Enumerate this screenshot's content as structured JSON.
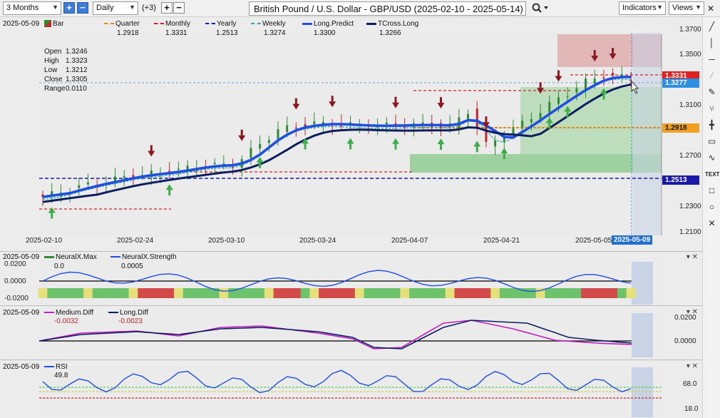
{
  "toolbar": {
    "period": "3 Months",
    "interval": "Daily",
    "extra_count": "(+3)",
    "title": "British Pound / U.S. Dollar - GBP/USD (2025-02-10 - 2025-05-14)",
    "indicators_label": "Indicators",
    "views_label": "Views"
  },
  "main": {
    "date": "2025-05-09",
    "legend": [
      {
        "label": "Bar",
        "color": "#2e8b2e"
      },
      {
        "label": "Quarter",
        "color": "#e08a1e"
      },
      {
        "label": "Monthly",
        "color": "#d42020"
      },
      {
        "label": "Yearly",
        "color": "#1a1aa8"
      },
      {
        "label": "Weekly",
        "color": "#3aa7a7"
      },
      {
        "label": "Long.Predict",
        "color": "#1f4fe0"
      },
      {
        "label": "TCross.Long",
        "color": "#0b1f5e"
      }
    ],
    "legend_values": [
      "1.2918",
      "1.3331",
      "1.2513",
      "1.3274",
      "1.3300",
      "1.3266"
    ],
    "ohlc": [
      {
        "k": "Open",
        "v": "1.3246"
      },
      {
        "k": "High",
        "v": "1.3323"
      },
      {
        "k": "Low",
        "v": "1.3212"
      },
      {
        "k": "Close",
        "v": "1.3305"
      },
      {
        "k": "Range",
        "v": "0.0110"
      }
    ],
    "price_ticks": [
      "1.3700",
      "1.3500",
      "1.3100",
      "1.2700",
      "1.2300",
      "1.2100"
    ],
    "price_tags": [
      "1.3331",
      "1.3277",
      "1.2918",
      "1.2513"
    ],
    "date_ticks": [
      "2025-02-10",
      "2025-02-24",
      "2025-03-10",
      "2025-03-24",
      "2025-04-07",
      "2025-04-21",
      "2025-05-05"
    ],
    "cursor_date": "2025-05-09"
  },
  "neural": {
    "date": "2025-05-09",
    "legend": [
      {
        "label": "NeuralX.Max",
        "color": "#2e8b2e"
      },
      {
        "label": "NeuralX.Strength",
        "color": "#1f4fe0"
      }
    ],
    "values": [
      "0.0",
      "0.0005"
    ],
    "ticks": [
      "0.0200",
      "0.0000",
      "-0.0200"
    ]
  },
  "diff": {
    "date": "2025-05-09",
    "legend": [
      {
        "label": "Medium.Diff",
        "color": "#c020c0"
      },
      {
        "label": "Long.Diff",
        "color": "#0b1f5e"
      }
    ],
    "values": [
      "-0.0032",
      "-0.0023"
    ],
    "ticks": [
      "0.0200",
      "0.0000"
    ]
  },
  "rsi": {
    "date": "2025-05-09",
    "legend": [
      {
        "label": "RSI",
        "color": "#1f4fe0"
      }
    ],
    "value": "49.8",
    "ticks": [
      "68.0",
      "18.0"
    ]
  },
  "colors": {
    "bull": "#2e8b2e",
    "bear": "#c0262c",
    "long_predict": "#1f4fe0",
    "tcross": "#0b1f5e",
    "weekly": "#3aa7a7",
    "monthly": "#d42020",
    "quarter": "#e08a1e",
    "yearly": "#1a1aa8"
  }
}
